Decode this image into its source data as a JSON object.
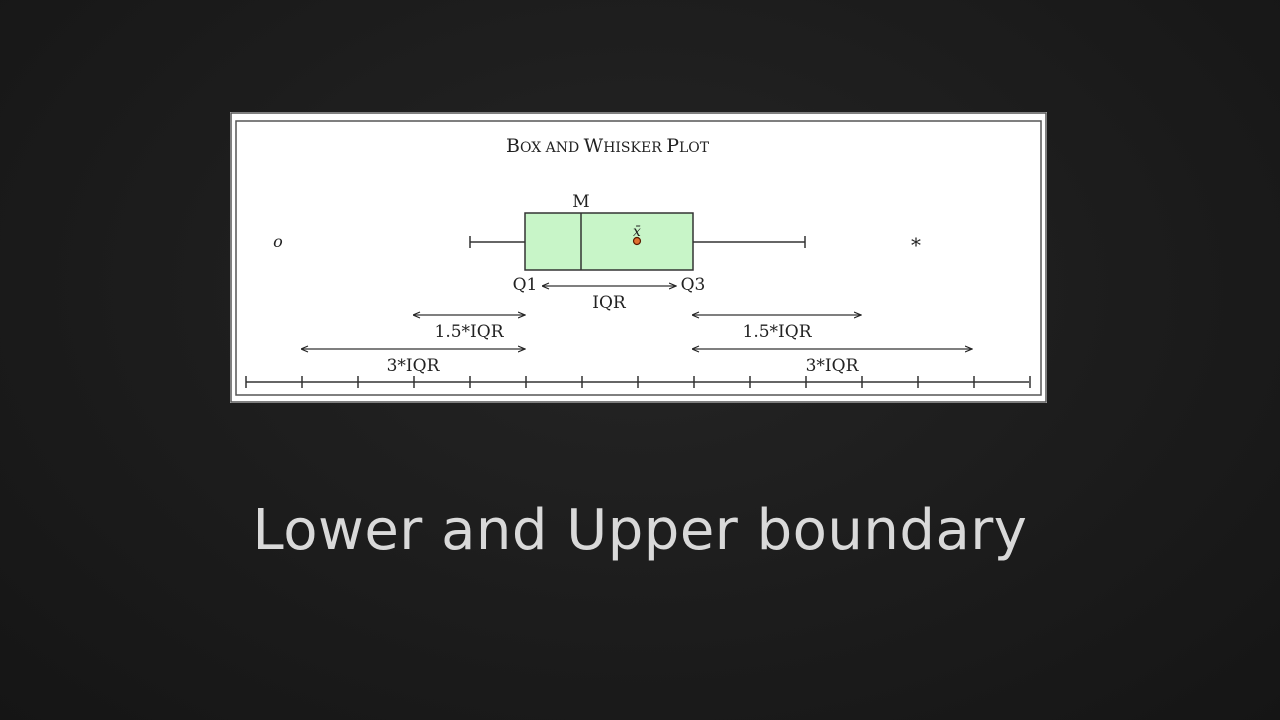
{
  "slide": {
    "title": "Lower and Upper boundary"
  },
  "diagram": {
    "title_big1": "B",
    "title_small1": "OX AND ",
    "title_big2": "W",
    "title_small2": "HISKER ",
    "title_big3": "P",
    "title_small3": "LOT",
    "median_label": "M",
    "mean_label": "x̄",
    "q1_label": "Q1",
    "q3_label": "Q3",
    "iqr_label": "IQR",
    "inner_fence_label_left": "1.5*IQR",
    "inner_fence_label_right": "1.5*IQR",
    "outer_fence_label_left": "3*IQR",
    "outer_fence_label_right": "3*IQR",
    "mild_outlier_symbol": "o",
    "extreme_outlier_symbol": "*",
    "box_fill": "#c8f5c8"
  }
}
